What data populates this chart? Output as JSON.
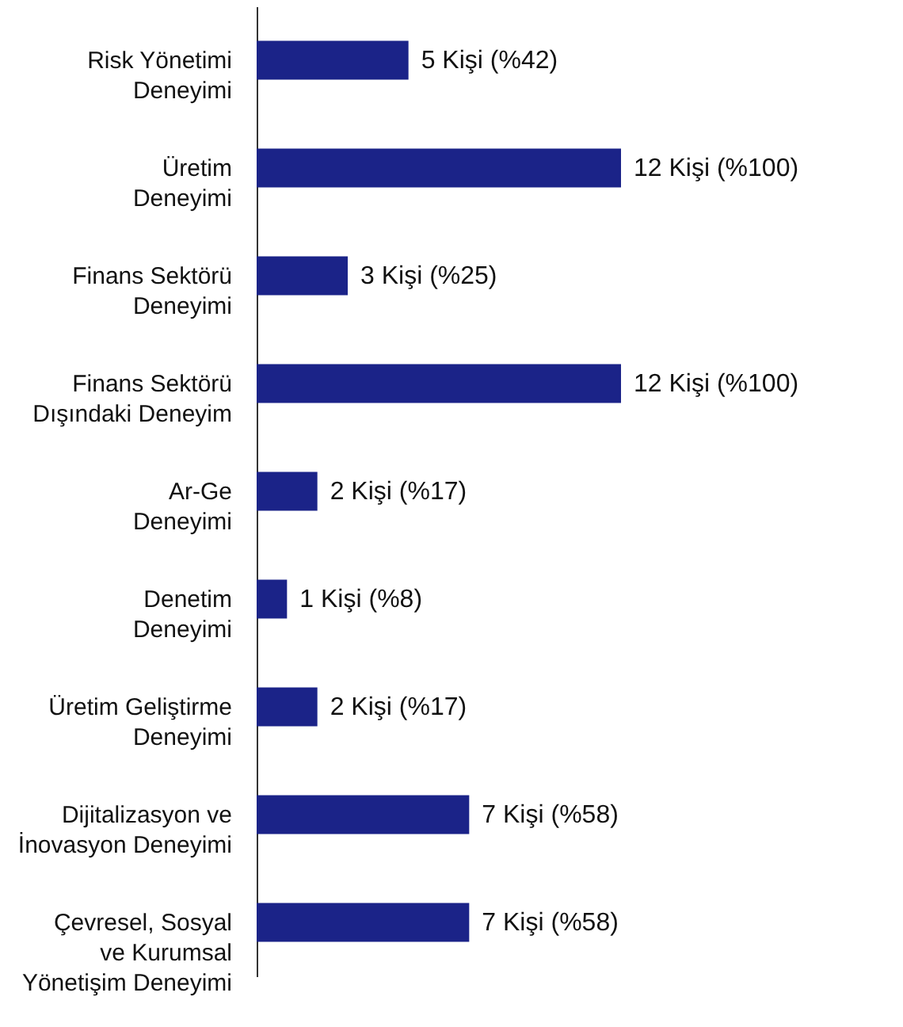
{
  "chart_data": {
    "type": "bar",
    "orientation": "horizontal",
    "categories": [
      "Risk Yönetimi\nDeneyimi",
      "Üretim\nDeneyimi",
      "Finans Sektörü\nDeneyimi",
      "Finans Sektörü\nDışındaki Deneyim",
      "Ar-Ge\nDeneyimi",
      "Denetim\nDeneyimi",
      "Üretim Geliştirme\nDeneyimi",
      "Dijitalizasyon ve\nİnovasyon Deneyimi",
      "Çevresel, Sosyal\nve Kurumsal\nYönetişim Deneyimi"
    ],
    "values": [
      5,
      12,
      3,
      12,
      2,
      1,
      2,
      7,
      7
    ],
    "value_labels": [
      "5 Kişi (%42)",
      "12 Kişi (%100)",
      "3 Kişi (%25)",
      "12 Kişi (%100)",
      "2 Kişi (%17)",
      "1 Kişi (%8)",
      "2 Kişi (%17)",
      "7 Kişi (%58)",
      "7 Kişi (%58)"
    ],
    "color": "#1b2388"
  }
}
